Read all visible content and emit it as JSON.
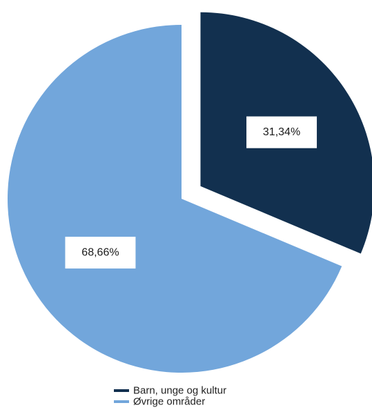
{
  "chart_data": {
    "type": "pie",
    "categories": [
      "Barn, unge og kultur",
      "Øvrige områder"
    ],
    "values": [
      31.34,
      68.66
    ],
    "value_labels": [
      "31,34%",
      "68,66%"
    ],
    "colors": [
      "#12304f",
      "#72a6db"
    ],
    "exploded": [
      true,
      false
    ],
    "legend_placement": "bottom"
  }
}
